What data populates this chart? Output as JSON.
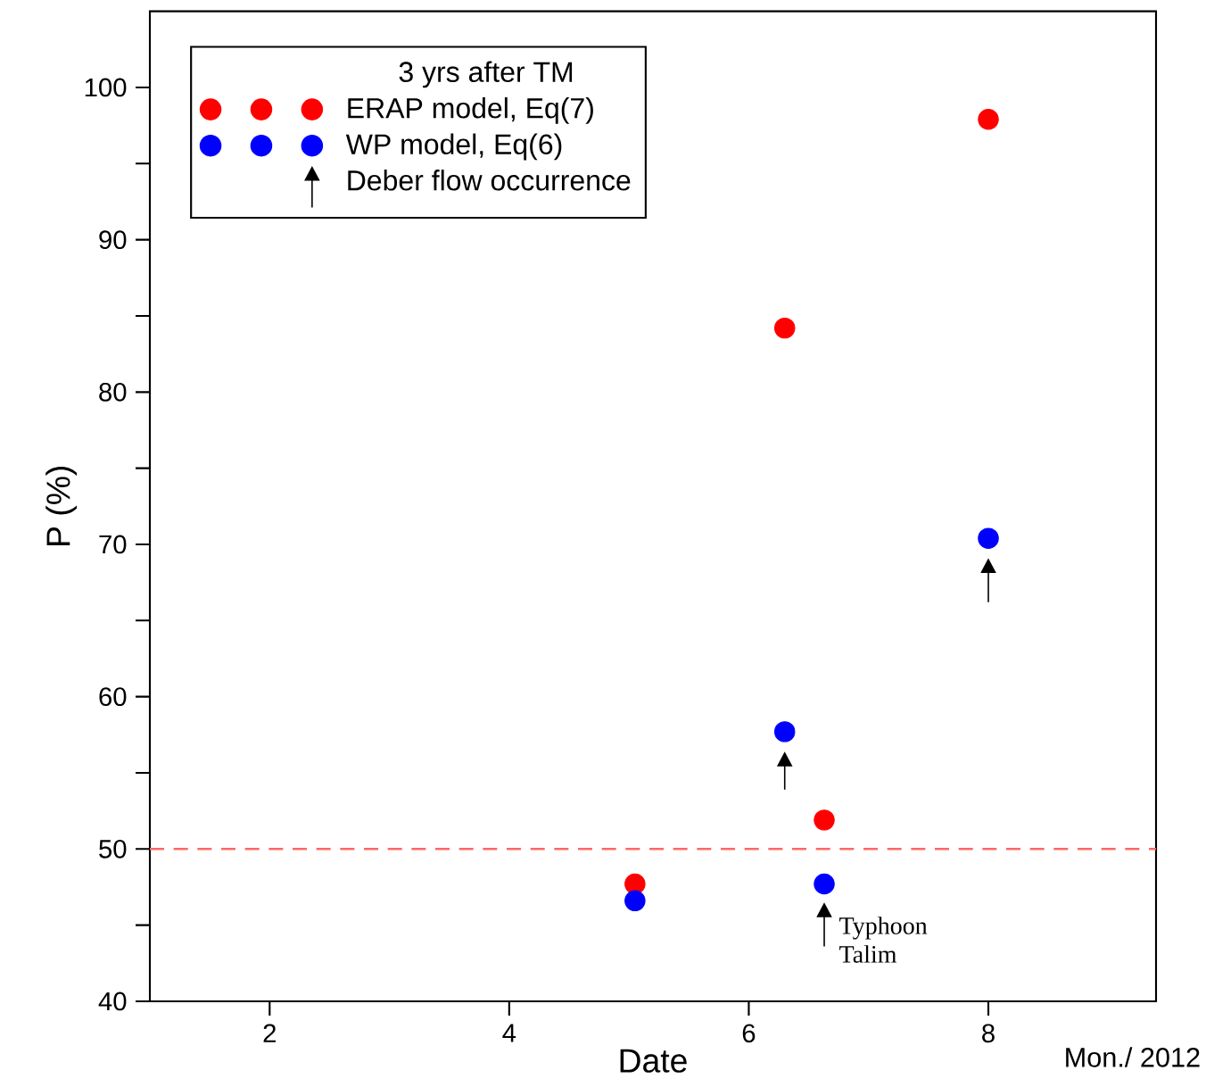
{
  "chart_data": {
    "type": "scatter",
    "xlabel": "Date",
    "ylabel": "P (%)",
    "legend_title": "3 yrs after TM",
    "xlim": [
      1,
      9.4
    ],
    "xticks": [
      2,
      4,
      6,
      8
    ],
    "ylim": [
      40,
      105
    ],
    "yticks": [
      40,
      {
        "value": 45,
        "label": null
      },
      50,
      {
        "value": 55,
        "label": null
      },
      60,
      {
        "value": 65,
        "label": null
      },
      70,
      {
        "value": 75,
        "label": null
      },
      80,
      {
        "value": 85,
        "label": null
      },
      90,
      {
        "value": 95,
        "label": null
      },
      100
    ],
    "legend": "top left",
    "grid": false,
    "series": [
      {
        "name": "ERAP model, Eq(7)",
        "color": "#ff0000",
        "marker": "circle",
        "x": [
          5.05,
          6.3,
          6.63,
          8
        ],
        "values": [
          47.7,
          84.2,
          51.9,
          97.9
        ]
      },
      {
        "name": "WP model, Eq(6)",
        "color": "#0000ff",
        "marker": "circle",
        "x": [
          5.05,
          6.3,
          6.63,
          8
        ],
        "values": [
          46.6,
          57.7,
          47.7,
          70.4
        ]
      },
      {
        "name": "Deber flow occurrence",
        "color": "#000000",
        "marker": "triangle",
        "x": [
          6.3,
          6.63,
          8
        ],
        "values": [
          55.8,
          45.9,
          68.5
        ],
        "errors": [
          [
            53.9,
            55.8
          ],
          [
            43.6,
            45.9
          ],
          [
            66.2,
            68.5
          ]
        ]
      }
    ],
    "ref_lines": [
      {
        "axis": "y",
        "value": 50,
        "color": "#ff6666",
        "line_style": "dashed"
      }
    ],
    "annotations": [
      {
        "text": "Typhoon Talim",
        "x": 6.63,
        "y": 45.9
      },
      "Mon./ 2012"
    ]
  }
}
